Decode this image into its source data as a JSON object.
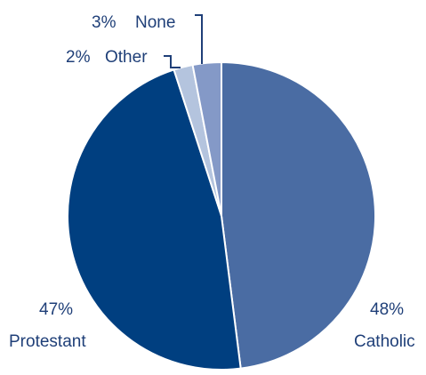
{
  "chart_data": {
    "type": "pie",
    "title": "",
    "slices": [
      {
        "name": "Catholic",
        "value": 48,
        "label": "48%",
        "color": "#4a6ca3"
      },
      {
        "name": "Protestant",
        "value": 47,
        "label": "47%",
        "color": "#003f80"
      },
      {
        "name": "Other",
        "value": 2,
        "label": "2%",
        "color": "#b4c4de"
      },
      {
        "name": "None",
        "value": 3,
        "label": "3%",
        "color": "#8499c7"
      }
    ],
    "legend": "none",
    "start_angle_deg": 0,
    "direction": "clockwise",
    "slice_border_color": "#ffffff"
  }
}
